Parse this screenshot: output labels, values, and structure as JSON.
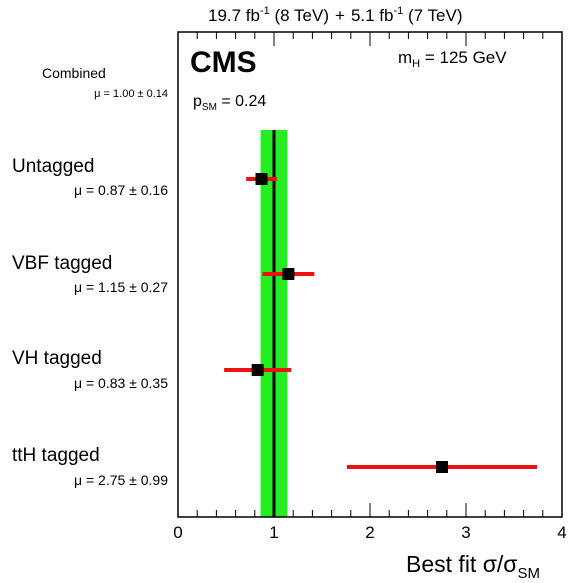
{
  "chart_data": {
    "type": "scatter",
    "header": {
      "lumi_8": "19.7 fb",
      "lumi_8_exp": "-1",
      "energy_8": " (8 TeV)",
      "plus": "+",
      "lumi_7": "5.1 fb",
      "lumi_7_exp": "-1",
      "energy_7": " (7 TeV)"
    },
    "experiment": "CMS",
    "mass_label": {
      "symbol": "m",
      "sub": "H",
      "value": " = 125 GeV"
    },
    "psm_label": {
      "symbol": "p",
      "sub": "SM",
      "value": " = 0.24"
    },
    "combined": {
      "label": "Combined",
      "mu_text": "μ = 1.00 ± 0.14",
      "value": 1.0,
      "low": 0.86,
      "high": 1.14
    },
    "categories": [
      {
        "name": "Untagged",
        "mu_text": "μ = 0.87 ± 0.16",
        "value": 0.87,
        "low": 0.71,
        "high": 1.03
      },
      {
        "name": "VBF tagged",
        "mu_text": "μ = 1.15 ± 0.27",
        "value": 1.15,
        "low": 0.88,
        "high": 1.42
      },
      {
        "name": "VH tagged",
        "mu_text": "μ = 0.83 ± 0.35",
        "value": 0.83,
        "low": 0.48,
        "high": 1.18
      },
      {
        "name": "ttH tagged",
        "mu_text": "μ = 2.75 ± 0.99",
        "value": 2.75,
        "low": 1.76,
        "high": 3.74
      }
    ],
    "xlim": [
      0,
      4
    ],
    "xticks": [
      "0",
      "1",
      "2",
      "3",
      "4"
    ],
    "xlabel": {
      "main": "Best fit σ/σ",
      "sub": "SM"
    },
    "colors": {
      "band": "#22ee22",
      "line": "#000000",
      "error": "#ee1111",
      "marker": "#000000"
    }
  }
}
